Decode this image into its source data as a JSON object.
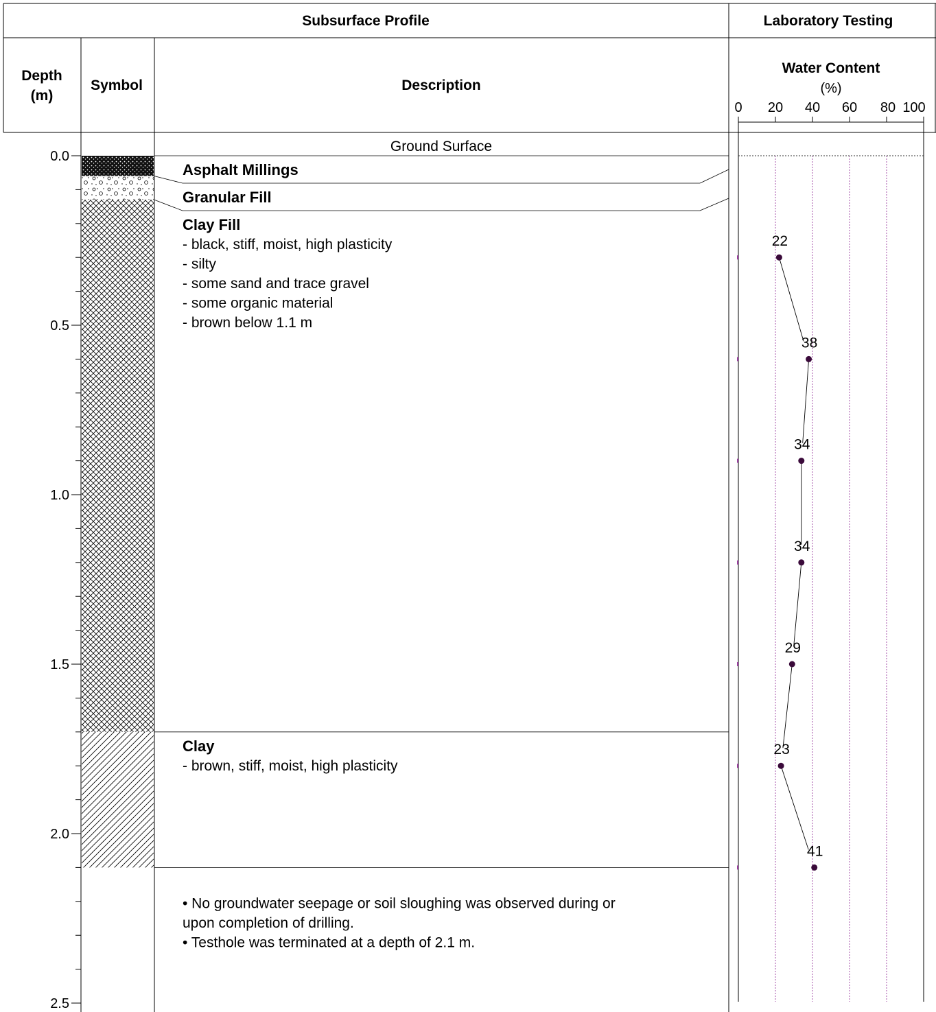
{
  "header": {
    "subsurface_profile": "Subsurface Profile",
    "laboratory_testing": "Laboratory Testing",
    "depth_label_line1": "Depth",
    "depth_label_line2": "(m)",
    "symbol_label": "Symbol",
    "description_label": "Description"
  },
  "profile": {
    "ground_surface": "Ground Surface",
    "layers": [
      {
        "name": "Asphalt Millings",
        "from": 0.0,
        "to": 0.06,
        "pattern": "asphalt",
        "notes": []
      },
      {
        "name": "Granular Fill",
        "from": 0.06,
        "to": 0.13,
        "pattern": "gravel",
        "notes": []
      },
      {
        "name": "Clay Fill",
        "from": 0.13,
        "to": 1.7,
        "pattern": "crosshatch",
        "notes": [
          "- black, stiff, moist, high plasticity",
          "- silty",
          "- some sand and trace gravel",
          "- some organic material",
          "- brown below 1.1 m"
        ]
      },
      {
        "name": "Clay",
        "from": 1.7,
        "to": 2.1,
        "pattern": "diagonal",
        "notes": [
          "- brown, stiff, moist, high plasticity"
        ]
      }
    ],
    "end_notes": [
      "• No groundwater seepage or soil sloughing was observed during or",
      "upon completion of drilling.",
      "• Testhole was terminated at a depth of 2.1 m."
    ]
  },
  "chart_data": {
    "type": "line",
    "title": "Water Content",
    "subtitle": "(%)",
    "x_axis": {
      "ticks": [
        0,
        20,
        40,
        60,
        80,
        100
      ],
      "range": [
        0,
        100
      ]
    },
    "depth_axis": {
      "ticks": [
        "0.0",
        "0.5",
        "1.0",
        "1.5",
        "2.0",
        "2.5"
      ],
      "range": [
        0,
        2.5
      ],
      "minor_step": 0.1
    },
    "gridlines_x": [
      20,
      40,
      60,
      80
    ],
    "series": [
      {
        "points": [
          {
            "depth": 0.3,
            "value": 22
          },
          {
            "depth": 0.6,
            "value": 38
          },
          {
            "depth": 0.9,
            "value": 34
          },
          {
            "depth": 1.2,
            "value": 34
          },
          {
            "depth": 1.5,
            "value": 29
          },
          {
            "depth": 1.8,
            "value": 23
          },
          {
            "depth": 2.1,
            "value": 41
          }
        ]
      }
    ],
    "colors": {
      "marker": "#3a0a3a",
      "grid": "#9b3da1",
      "line": "#000000"
    }
  }
}
